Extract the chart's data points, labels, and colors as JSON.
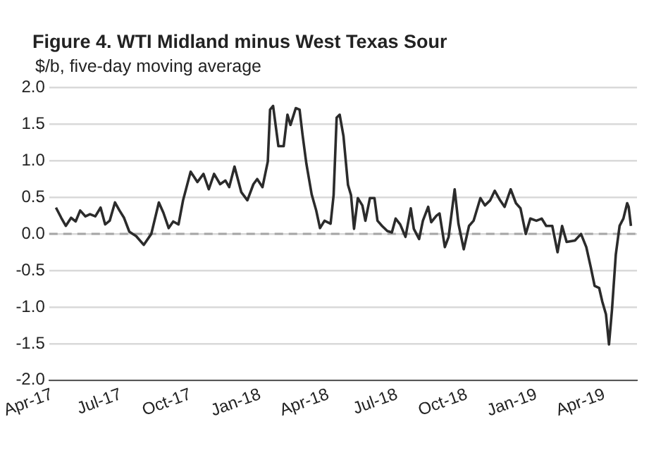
{
  "chart_data": {
    "type": "line",
    "title": "Figure 4. WTI Midland minus West Texas Sour",
    "subtitle": "$/b, five-day moving average",
    "x": [
      "2017-04-06",
      "2017-04-13",
      "2017-04-19",
      "2017-04-26",
      "2017-05-02",
      "2017-05-08",
      "2017-05-15",
      "2017-05-21",
      "2017-05-28",
      "2017-06-04",
      "2017-06-10",
      "2017-06-16",
      "2017-06-23",
      "2017-06-29",
      "2017-07-05",
      "2017-07-12",
      "2017-07-21",
      "2017-07-31",
      "2017-08-10",
      "2017-08-20",
      "2017-08-26",
      "2017-09-02",
      "2017-09-08",
      "2017-09-15",
      "2017-09-21",
      "2017-10-01",
      "2017-10-10",
      "2017-10-18",
      "2017-10-25",
      "2017-11-01",
      "2017-11-09",
      "2017-11-16",
      "2017-11-21",
      "2017-11-28",
      "2017-12-07",
      "2017-12-15",
      "2017-12-23",
      "2017-12-28",
      "2018-01-04",
      "2018-01-11",
      "2018-01-14",
      "2018-01-18",
      "2018-01-25",
      "2018-02-01",
      "2018-02-06",
      "2018-02-10",
      "2018-02-17",
      "2018-02-22",
      "2018-02-26",
      "2018-03-03",
      "2018-03-10",
      "2018-03-16",
      "2018-03-21",
      "2018-03-27",
      "2018-04-04",
      "2018-04-08",
      "2018-04-12",
      "2018-04-16",
      "2018-04-21",
      "2018-04-27",
      "2018-05-01",
      "2018-05-05",
      "2018-05-10",
      "2018-05-16",
      "2018-05-20",
      "2018-05-26",
      "2018-06-01",
      "2018-06-05",
      "2018-06-11",
      "2018-06-18",
      "2018-06-24",
      "2018-06-29",
      "2018-07-05",
      "2018-07-12",
      "2018-07-19",
      "2018-07-23",
      "2018-07-30",
      "2018-08-04",
      "2018-08-11",
      "2018-08-15",
      "2018-08-22",
      "2018-08-26",
      "2018-09-02",
      "2018-09-07",
      "2018-09-15",
      "2018-09-20",
      "2018-09-27",
      "2018-10-04",
      "2018-10-10",
      "2018-10-19",
      "2018-10-25",
      "2018-11-01",
      "2018-11-07",
      "2018-11-14",
      "2018-11-20",
      "2018-11-28",
      "2018-12-05",
      "2018-12-11",
      "2018-12-18",
      "2018-12-24",
      "2019-01-01",
      "2019-01-08",
      "2019-01-14",
      "2019-01-22",
      "2019-01-29",
      "2019-02-04",
      "2019-02-10",
      "2019-02-21",
      "2019-03-01",
      "2019-03-08",
      "2019-03-14",
      "2019-03-19",
      "2019-03-25",
      "2019-03-29",
      "2019-04-03",
      "2019-04-07",
      "2019-04-11",
      "2019-04-16",
      "2019-04-21",
      "2019-04-26",
      "2019-05-01",
      "2019-05-03",
      "2019-05-06"
    ],
    "series": [
      {
        "color": "#2b2b2b",
        "values": [
          0.36,
          0.22,
          0.11,
          0.22,
          0.17,
          0.32,
          0.24,
          0.27,
          0.24,
          0.36,
          0.13,
          0.18,
          0.43,
          0.32,
          0.22,
          0.03,
          -0.03,
          -0.15,
          0.0,
          0.43,
          0.29,
          0.08,
          0.17,
          0.13,
          0.46,
          0.85,
          0.71,
          0.82,
          0.61,
          0.82,
          0.68,
          0.73,
          0.64,
          0.92,
          0.57,
          0.46,
          0.68,
          0.75,
          0.64,
          0.99,
          1.7,
          1.75,
          1.2,
          1.2,
          1.63,
          1.49,
          1.72,
          1.7,
          1.35,
          0.96,
          0.54,
          0.32,
          0.08,
          0.18,
          0.14,
          0.53,
          1.59,
          1.63,
          1.34,
          0.67,
          0.53,
          0.07,
          0.49,
          0.39,
          0.18,
          0.49,
          0.49,
          0.18,
          0.11,
          0.04,
          0.02,
          0.21,
          0.13,
          -0.04,
          0.35,
          0.07,
          -0.07,
          0.18,
          0.37,
          0.16,
          0.25,
          0.28,
          -0.18,
          -0.04,
          0.61,
          0.14,
          -0.21,
          0.11,
          0.18,
          0.49,
          0.39,
          0.46,
          0.59,
          0.46,
          0.37,
          0.61,
          0.42,
          0.35,
          0.0,
          0.21,
          0.18,
          0.21,
          0.11,
          0.11,
          -0.25,
          0.11,
          -0.11,
          -0.09,
          0.0,
          -0.18,
          -0.46,
          -0.71,
          -0.74,
          -0.92,
          -1.1,
          -1.51,
          -1.03,
          -0.28,
          0.11,
          0.21,
          0.42,
          0.37,
          0.11
        ]
      }
    ],
    "xlim": [
      "2017-03-28",
      "2019-05-14"
    ],
    "xticks": [
      {
        "value": "2017-04-01",
        "label": "Apr-17"
      },
      {
        "value": "2017-07-01",
        "label": "Jul-17"
      },
      {
        "value": "2017-10-01",
        "label": "Oct-17"
      },
      {
        "value": "2018-01-01",
        "label": "Jan-18"
      },
      {
        "value": "2018-04-01",
        "label": "Apr-18"
      },
      {
        "value": "2018-07-01",
        "label": "Jul-18"
      },
      {
        "value": "2018-10-01",
        "label": "Oct-18"
      },
      {
        "value": "2019-01-01",
        "label": "Jan-19"
      },
      {
        "value": "2019-04-01",
        "label": "Apr-19"
      }
    ],
    "ylim": [
      -2,
      2
    ],
    "yticks": [
      {
        "value": -2,
        "label": "-2.0"
      },
      {
        "value": -1.5,
        "label": "-1.5"
      },
      {
        "value": -1,
        "label": "-1.0"
      },
      {
        "value": -0.5,
        "label": "-0.5"
      },
      {
        "value": 0,
        "label": "0.0"
      },
      {
        "value": 0.5,
        "label": "0.5"
      },
      {
        "value": 1,
        "label": "1.0"
      },
      {
        "value": 1.5,
        "label": "1.5"
      },
      {
        "value": 2,
        "label": "2.0"
      }
    ],
    "ref_lines": [
      {
        "axis": "y",
        "value": 0,
        "color": "#a6a6a6",
        "line_style": "dashed"
      }
    ],
    "grid": "y",
    "legend": false,
    "marker": "none",
    "line_style": "solid"
  }
}
